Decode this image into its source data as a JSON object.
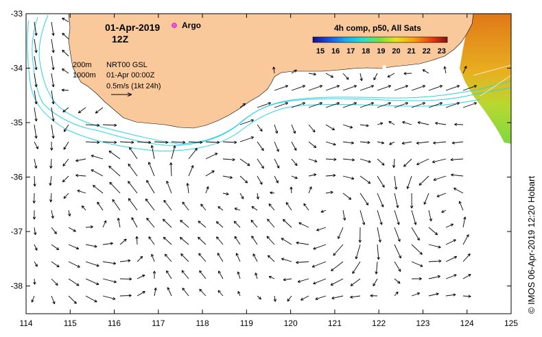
{
  "map": {
    "title_date": "01-Apr-2019",
    "title_time": "12Z",
    "argo_label": "Argo",
    "legend_isobath_1": "200m",
    "legend_isobath_2": "1000m",
    "legend_product": "NRT00 GSL",
    "legend_timestamp": "01-Apr 00:00Z",
    "legend_scale": "0.5m/s (1kt 24h)",
    "credit": "© IMOS 06-Apr-2019 12:20 Hobart",
    "colorbar": {
      "title": "4h comp, p50, All Sats",
      "ticks": [
        "15",
        "16",
        "17",
        "18",
        "19",
        "20",
        "21",
        "22",
        "23"
      ]
    },
    "lon_ticks": [
      "114",
      "115",
      "116",
      "117",
      "118",
      "119",
      "120",
      "121",
      "122",
      "123",
      "124",
      "125"
    ],
    "lat_ticks": [
      "-33",
      "-34",
      "-35",
      "-36",
      "-37",
      "-38"
    ],
    "colors": {
      "land": "#f9c89b",
      "isobath": "#2ad4e8",
      "argo": "#e020e0",
      "arrow": "#000000"
    }
  }
}
